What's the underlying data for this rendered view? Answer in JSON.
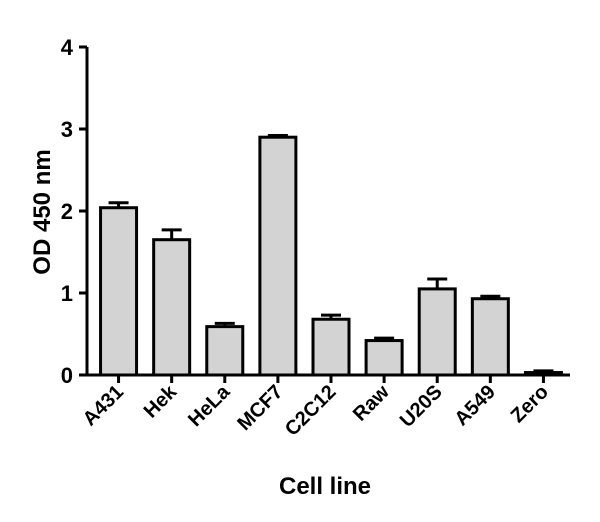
{
  "chart_data": {
    "type": "bar",
    "categories": [
      "A431",
      "Hek",
      "HeLa",
      "MCF7",
      "C2C12",
      "Raw",
      "U20S",
      "A549",
      "Zero"
    ],
    "series": [
      {
        "values": [
          2.04,
          1.65,
          0.59,
          2.9,
          0.68,
          0.42,
          1.05,
          0.93,
          0.03
        ],
        "errors": [
          0.06,
          0.12,
          0.04,
          0.02,
          0.05,
          0.03,
          0.12,
          0.03,
          0.02
        ]
      }
    ],
    "xlabel": "Cell line",
    "ylabel": "OD 450 nm",
    "ylim": [
      0,
      4
    ],
    "yticks": [
      0,
      1,
      2,
      3,
      4
    ],
    "grid": false,
    "legend": "none",
    "bar_color": "#d3d3d3",
    "edge_color": "#000000"
  }
}
